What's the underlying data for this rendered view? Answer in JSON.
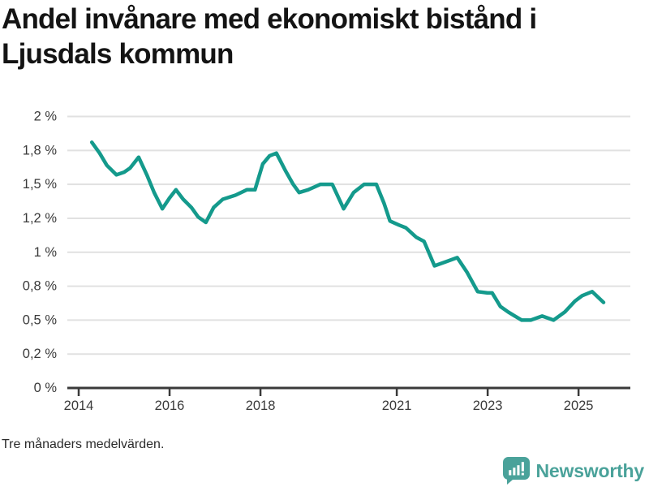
{
  "title": {
    "lines": [
      "Andel invånare med ekonomiskt bistånd i",
      "Ljusdals kommun"
    ]
  },
  "footnote": "Tre månaders medelvärden.",
  "branding": {
    "name": "Newsworthy",
    "logo_icon": "speech-bubble-bar-chart-exclamation"
  },
  "colors": {
    "line": "#149a8c",
    "grid": "#e1e1e1",
    "axis": "#3a3a3a",
    "tick_text": "#3a3a3a",
    "title_text": "#141414",
    "logo": "#4aa29a",
    "background": "#ffffff"
  },
  "chart_data": {
    "type": "line",
    "title": "Andel invånare med ekonomiskt bistånd i Ljusdals kommun",
    "xlabel": "",
    "ylabel": "",
    "unit": "%",
    "grid": "on",
    "legend": "none",
    "xlim": [
      2013.75,
      2026.14
    ],
    "ylim": [
      0,
      2
    ],
    "x_ticks": {
      "values": [
        2014,
        2016,
        2018,
        2021,
        2023,
        2025
      ],
      "labels": [
        "2014",
        "2016",
        "2018",
        "2021",
        "2023",
        "2025"
      ]
    },
    "y_ticks": {
      "values": [
        0,
        0.25,
        0.5,
        0.75,
        1.0,
        1.25,
        1.5,
        1.75,
        2.0
      ],
      "labels": [
        "0 %",
        "0,2 %",
        "0,5 %",
        "0,8 %",
        "1 %",
        "1,2 %",
        "1,5 %",
        "1,8 %",
        "2 %"
      ]
    },
    "series": [
      {
        "name": "Andel invånare med ekonomiskt bistånd",
        "points": [
          [
            2014.29,
            1.81
          ],
          [
            2014.46,
            1.73
          ],
          [
            2014.62,
            1.64
          ],
          [
            2014.83,
            1.57
          ],
          [
            2015.0,
            1.59
          ],
          [
            2015.13,
            1.62
          ],
          [
            2015.32,
            1.7
          ],
          [
            2015.5,
            1.57
          ],
          [
            2015.66,
            1.44
          ],
          [
            2015.84,
            1.32
          ],
          [
            2016.0,
            1.4
          ],
          [
            2016.14,
            1.46
          ],
          [
            2016.3,
            1.39
          ],
          [
            2016.48,
            1.33
          ],
          [
            2016.63,
            1.26
          ],
          [
            2016.8,
            1.22
          ],
          [
            2016.97,
            1.33
          ],
          [
            2017.17,
            1.39
          ],
          [
            2017.45,
            1.42
          ],
          [
            2017.7,
            1.46
          ],
          [
            2017.88,
            1.46
          ],
          [
            2018.05,
            1.65
          ],
          [
            2018.2,
            1.71
          ],
          [
            2018.35,
            1.73
          ],
          [
            2018.55,
            1.6
          ],
          [
            2018.72,
            1.5
          ],
          [
            2018.85,
            1.44
          ],
          [
            2019.05,
            1.46
          ],
          [
            2019.32,
            1.5
          ],
          [
            2019.58,
            1.5
          ],
          [
            2019.83,
            1.32
          ],
          [
            2020.05,
            1.44
          ],
          [
            2020.28,
            1.5
          ],
          [
            2020.55,
            1.5
          ],
          [
            2020.72,
            1.36
          ],
          [
            2020.85,
            1.23
          ],
          [
            2021.05,
            1.2
          ],
          [
            2021.2,
            1.18
          ],
          [
            2021.43,
            1.11
          ],
          [
            2021.6,
            1.08
          ],
          [
            2021.83,
            0.9
          ],
          [
            2022.08,
            0.93
          ],
          [
            2022.33,
            0.96
          ],
          [
            2022.55,
            0.85
          ],
          [
            2022.78,
            0.71
          ],
          [
            2023.0,
            0.7
          ],
          [
            2023.1,
            0.7
          ],
          [
            2023.28,
            0.6
          ],
          [
            2023.45,
            0.56
          ],
          [
            2023.6,
            0.53
          ],
          [
            2023.75,
            0.5
          ],
          [
            2023.95,
            0.5
          ],
          [
            2024.2,
            0.53
          ],
          [
            2024.45,
            0.5
          ],
          [
            2024.7,
            0.56
          ],
          [
            2024.92,
            0.64
          ],
          [
            2025.08,
            0.68
          ],
          [
            2025.3,
            0.71
          ],
          [
            2025.55,
            0.63
          ]
        ]
      }
    ]
  }
}
